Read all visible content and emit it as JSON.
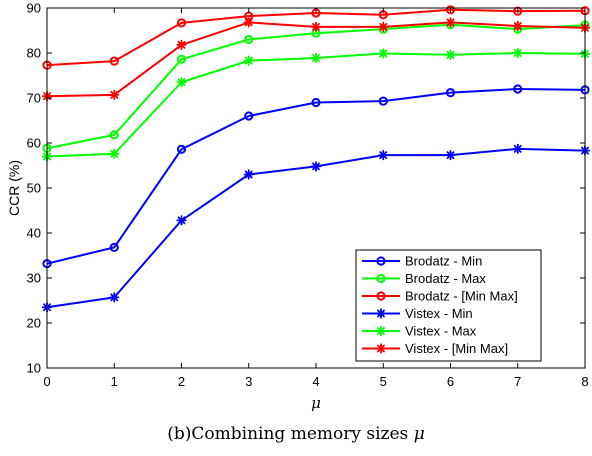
{
  "caption": {
    "text": "(b)Combining memory sizes",
    "symbol": "μ"
  },
  "chart_data": {
    "type": "line",
    "title": "",
    "xlabel": "μ",
    "ylabel": "CCR (%)",
    "xlim": [
      0,
      8
    ],
    "ylim": [
      10,
      90
    ],
    "xticks": [
      0,
      1,
      2,
      3,
      4,
      5,
      6,
      7,
      8
    ],
    "yticks": [
      10,
      20,
      30,
      40,
      50,
      60,
      70,
      80,
      90
    ],
    "grid": false,
    "legend_position": "lower-right",
    "x": [
      0,
      1,
      2,
      3,
      4,
      5,
      6,
      7,
      8
    ],
    "series": [
      {
        "name": "Brodatz - Min",
        "color": "#0000ff",
        "marker": "circle",
        "values": [
          33.2,
          36.8,
          58.6,
          66.0,
          69.0,
          69.3,
          71.2,
          72.0,
          71.8
        ]
      },
      {
        "name": "Brodatz - Max",
        "color": "#00ff00",
        "marker": "circle",
        "values": [
          58.8,
          61.8,
          78.6,
          83.0,
          84.4,
          85.3,
          86.3,
          85.3,
          86.2
        ]
      },
      {
        "name": "Brodatz - [Min Max]",
        "color": "#ff0000",
        "marker": "circle",
        "values": [
          77.3,
          78.2,
          86.7,
          88.2,
          88.9,
          88.5,
          89.6,
          89.3,
          89.4
        ]
      },
      {
        "name": "Vistex - Min",
        "color": "#0000ff",
        "marker": "asterisk",
        "values": [
          23.5,
          25.7,
          42.8,
          53.0,
          54.8,
          57.3,
          57.3,
          58.7,
          58.3
        ]
      },
      {
        "name": "Vistex - Max",
        "color": "#00ff00",
        "marker": "asterisk",
        "values": [
          57.0,
          57.6,
          73.5,
          78.3,
          78.9,
          79.9,
          79.6,
          80.0,
          79.8
        ]
      },
      {
        "name": "Vistex - [Min Max]",
        "color": "#ff0000",
        "marker": "asterisk",
        "values": [
          70.4,
          70.7,
          81.8,
          86.8,
          85.8,
          85.8,
          86.8,
          86.0,
          85.6
        ]
      }
    ]
  }
}
